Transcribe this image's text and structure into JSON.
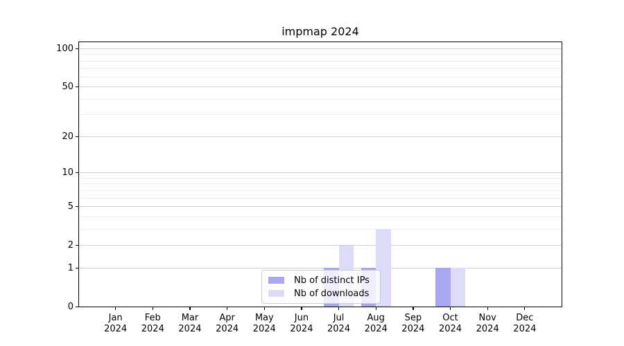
{
  "chart_data": {
    "type": "bar",
    "title": "impmap 2024",
    "categories": [
      "Jan 2024",
      "Feb 2024",
      "Mar 2024",
      "Apr 2024",
      "May 2024",
      "Jun 2024",
      "Jul 2024",
      "Aug 2024",
      "Sep 2024",
      "Oct 2024",
      "Nov 2024",
      "Dec 2024"
    ],
    "x_tick_line1": [
      "Jan",
      "Feb",
      "Mar",
      "Apr",
      "May",
      "Jun",
      "Jul",
      "Aug",
      "Sep",
      "Oct",
      "Nov",
      "Dec"
    ],
    "x_tick_line2": [
      "2024",
      "2024",
      "2024",
      "2024",
      "2024",
      "2024",
      "2024",
      "2024",
      "2024",
      "2024",
      "2024",
      "2024"
    ],
    "series": [
      {
        "name": "Nb of distinct IPs",
        "color": "#a8a8f0",
        "values": [
          0,
          0,
          0,
          0,
          0,
          0,
          1,
          1,
          0,
          1,
          0,
          0
        ]
      },
      {
        "name": "Nb of downloads",
        "color": "#dcdcf8",
        "values": [
          0,
          0,
          0,
          0,
          0,
          0,
          2,
          3,
          0,
          1,
          0,
          0
        ]
      }
    ],
    "yscale": "log1p",
    "ylim": [
      0,
      115
    ],
    "y_major_ticks": [
      0,
      1,
      2,
      5,
      10,
      20,
      50,
      100
    ],
    "y_minor_gridlines": [
      3,
      4,
      6,
      7,
      8,
      9,
      30,
      40,
      60,
      70,
      80,
      90
    ],
    "grid": true,
    "legend": {
      "entries": [
        "Nb of distinct IPs",
        "Nb of downloads"
      ],
      "position": "inside lower-center"
    }
  },
  "colors": {
    "grid_major": "#cfcfcf",
    "grid_minor": "#ededed",
    "axis": "#000000",
    "legend_border": "#cccccc",
    "bar_distinct_ips": "#a8a8f0",
    "bar_downloads": "#dcdcf8"
  }
}
